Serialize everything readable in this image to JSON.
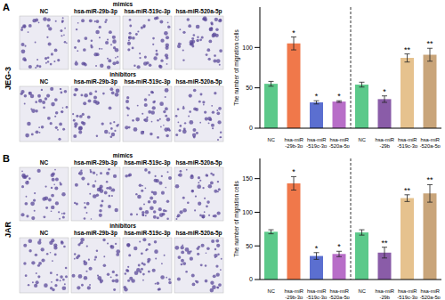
{
  "images": {
    "columns": [
      "NC",
      "hsa-miR-29b-3p",
      "hsa-miR-519c-3p",
      "hsa-miR-520a-5p"
    ],
    "rows": [
      "mimics",
      "inhibitors"
    ],
    "panels": [
      {
        "label": "A",
        "cell_line": "JEG-3"
      },
      {
        "label": "B",
        "cell_line": "JAR"
      }
    ]
  },
  "chart_data": [
    {
      "type": "bar",
      "y_label": "The number of migration cells",
      "categories": [
        "NC",
        "hsa-miR\n-29b-3p",
        "hsa-miR\n-519c-3p",
        "hsa-miR\n-520a-5p",
        "NC",
        "hsa-miR\n-29b",
        "hsa-miR\n-519c-3p",
        "hsa-miR\n-520a-5p"
      ],
      "values": [
        55,
        105,
        32,
        33,
        54,
        36,
        87,
        91
      ],
      "error": [
        3,
        8,
        2,
        1,
        3,
        4,
        5,
        8
      ],
      "significance": [
        null,
        "*",
        "*",
        "*",
        null,
        "*",
        "**",
        "**"
      ],
      "colors": [
        "#5cc98a",
        "#f0784a",
        "#5b6fd0",
        "#b86ec8",
        "#5cc98a",
        "#8a5ca8",
        "#e6c28e",
        "#c9a57a"
      ],
      "ylim": [
        0,
        150
      ],
      "yticks": [
        0,
        50,
        100
      ]
    },
    {
      "type": "bar",
      "y_label": "The number of migration cells",
      "categories": [
        "NC",
        "hsa-miR\n-29b-3p",
        "hsa-miR\n-519c-3p",
        "hsa-miR\n-520a-5p",
        "NC",
        "hsa-miR\n-29b",
        "hsa-miR\n-519c-3p",
        "hsa-miR\n-520a-5p"
      ],
      "values": [
        71,
        143,
        35,
        38,
        70,
        40,
        121,
        128
      ],
      "error": [
        3,
        10,
        5,
        4,
        4,
        8,
        5,
        13
      ],
      "significance": [
        null,
        "*",
        "*",
        "*",
        null,
        "**",
        "**",
        "**"
      ],
      "colors": [
        "#5cc98a",
        "#f0784a",
        "#5b6fd0",
        "#b86ec8",
        "#5cc98a",
        "#8a5ca8",
        "#e6c28e",
        "#c9a57a"
      ],
      "ylim": [
        0,
        180
      ],
      "yticks": [
        0,
        50,
        100,
        150
      ]
    }
  ]
}
